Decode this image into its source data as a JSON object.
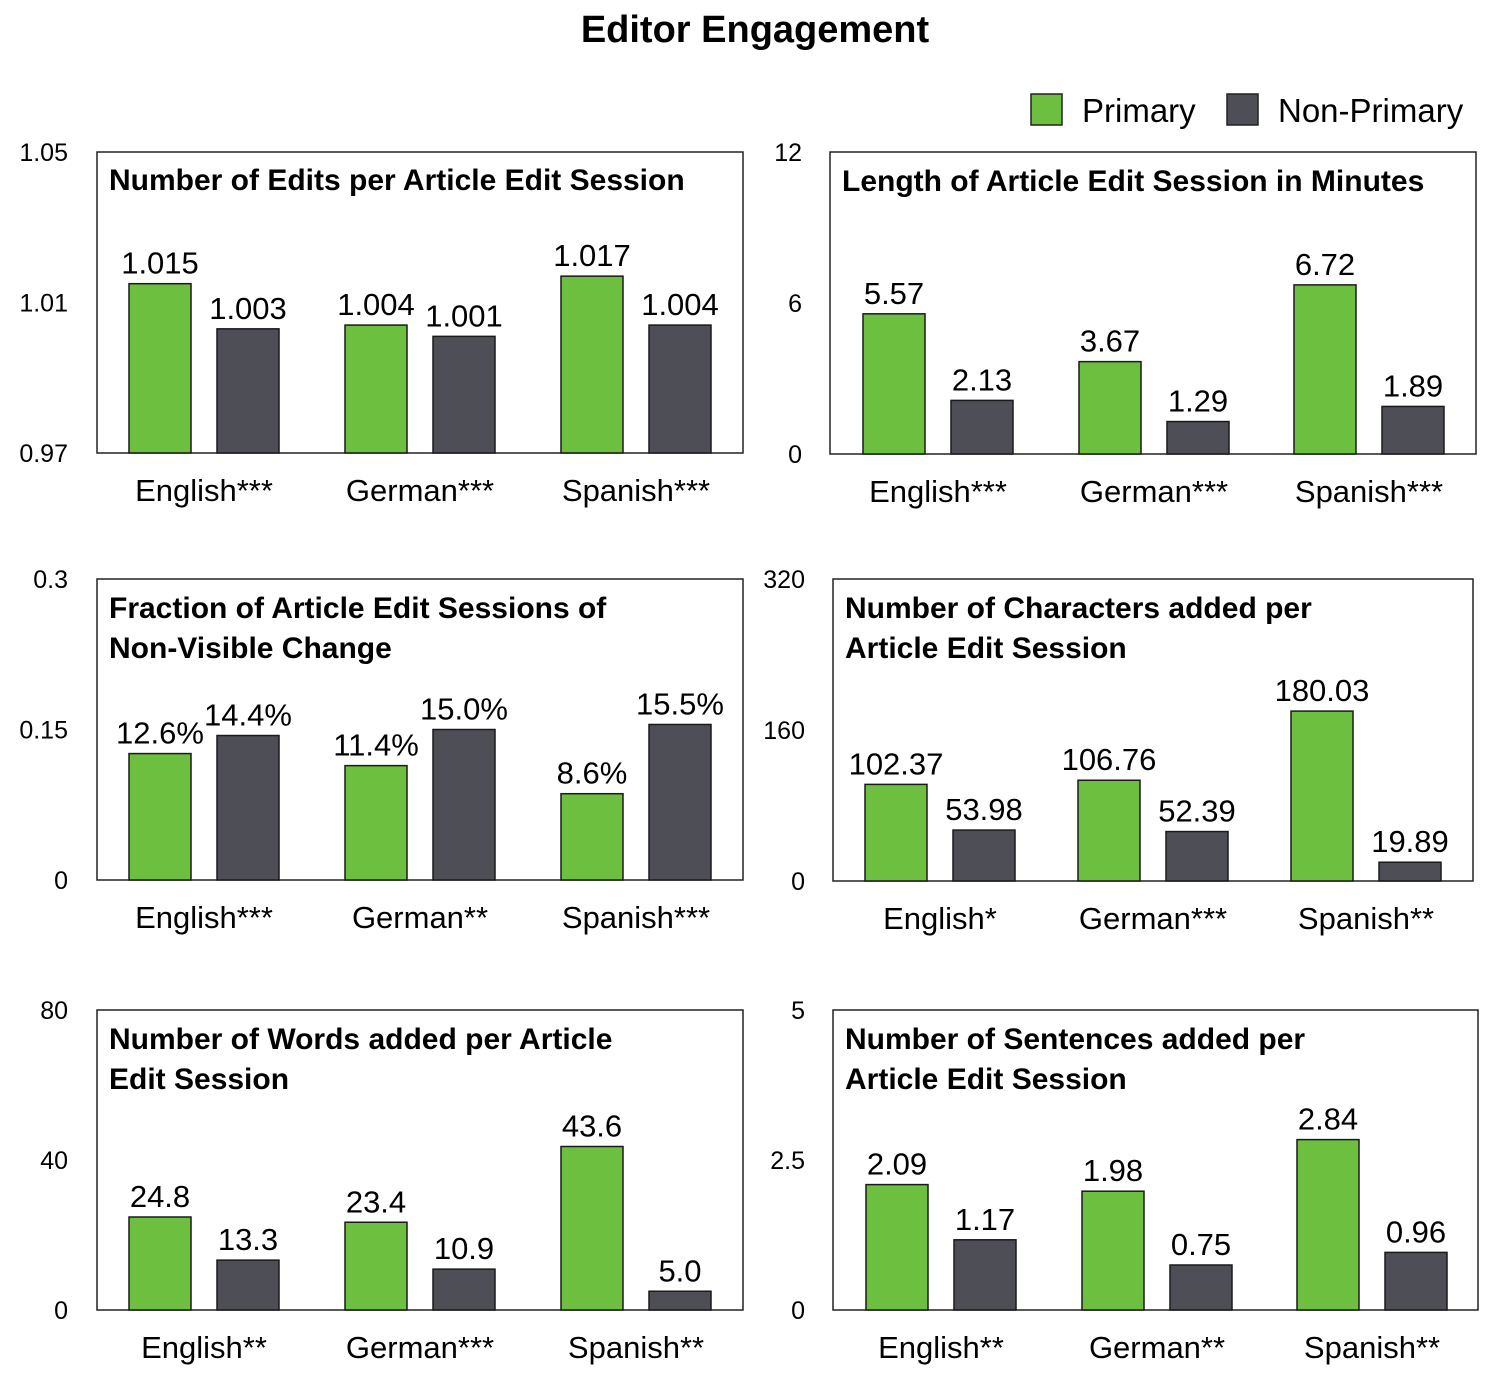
{
  "title": "Editor Engagement",
  "legend": [
    "Primary",
    "Non-Primary"
  ],
  "colors": {
    "Primary": "#6cbf3f",
    "Non-Primary": "#4e4e56"
  },
  "chart_data": [
    {
      "type": "bar",
      "title": "Number of Edits per Article Edit Session",
      "categories": [
        "English***",
        "German***",
        "Spanish***"
      ],
      "series": [
        {
          "name": "Primary",
          "values": [
            1.015,
            1.004,
            1.017
          ],
          "labels": [
            "1.015",
            "1.004",
            "1.017"
          ]
        },
        {
          "name": "Non-Primary",
          "values": [
            1.003,
            1.001,
            1.004
          ],
          "labels": [
            "1.003",
            "1.001",
            "1.004"
          ]
        }
      ],
      "ylim": [
        0.97,
        1.05
      ],
      "yticks": [
        "1.05",
        "1.01",
        "0.97"
      ],
      "ytick_values": [
        1.05,
        1.01,
        0.97
      ]
    },
    {
      "type": "bar",
      "title": "Length of Article Edit Session in Minutes",
      "categories": [
        "English***",
        "German***",
        "Spanish***"
      ],
      "series": [
        {
          "name": "Primary",
          "values": [
            5.57,
            3.67,
            6.72
          ],
          "labels": [
            "5.57",
            "3.67",
            "6.72"
          ]
        },
        {
          "name": "Non-Primary",
          "values": [
            2.13,
            1.29,
            1.89
          ],
          "labels": [
            "2.13",
            "1.29",
            "1.89"
          ]
        }
      ],
      "ylim": [
        0,
        12
      ],
      "yticks": [
        "12",
        "6",
        "0"
      ],
      "ytick_values": [
        12,
        6,
        0
      ]
    },
    {
      "type": "bar",
      "title": "Fraction of Article Edit Sessions of Non-Visible Change",
      "categories": [
        "English***",
        "German**",
        "Spanish***"
      ],
      "series": [
        {
          "name": "Primary",
          "values": [
            0.126,
            0.114,
            0.086
          ],
          "labels": [
            "12.6%",
            "11.4%",
            "8.6%"
          ]
        },
        {
          "name": "Non-Primary",
          "values": [
            0.144,
            0.15,
            0.155
          ],
          "labels": [
            "14.4%",
            "15.0%",
            "15.5%"
          ]
        }
      ],
      "ylim": [
        0,
        0.3
      ],
      "yticks": [
        "0.3",
        "0.15",
        "0"
      ],
      "ytick_values": [
        0.3,
        0.15,
        0
      ]
    },
    {
      "type": "bar",
      "title": "Number of Characters added per Article Edit Session",
      "categories": [
        "English*",
        "German***",
        "Spanish**"
      ],
      "series": [
        {
          "name": "Primary",
          "values": [
            102.37,
            106.76,
            180.03
          ],
          "labels": [
            "102.37",
            "106.76",
            "180.03"
          ]
        },
        {
          "name": "Non-Primary",
          "values": [
            53.98,
            52.39,
            19.89
          ],
          "labels": [
            "53.98",
            "52.39",
            "19.89"
          ]
        }
      ],
      "ylim": [
        0,
        320
      ],
      "yticks": [
        "320",
        "160",
        "0"
      ],
      "ytick_values": [
        320,
        160,
        0
      ]
    },
    {
      "type": "bar",
      "title": "Number of Words added per Article Edit Session",
      "categories": [
        "English**",
        "German***",
        "Spanish**"
      ],
      "series": [
        {
          "name": "Primary",
          "values": [
            24.8,
            23.4,
            43.6
          ],
          "labels": [
            "24.8",
            "23.4",
            "43.6"
          ]
        },
        {
          "name": "Non-Primary",
          "values": [
            13.3,
            10.9,
            5.0
          ],
          "labels": [
            "13.3",
            "10.9",
            "5.0"
          ]
        }
      ],
      "ylim": [
        0,
        80
      ],
      "yticks": [
        "80",
        "40",
        "0"
      ],
      "ytick_values": [
        80,
        40,
        0
      ]
    },
    {
      "type": "bar",
      "title": "Number of Sentences added per Article Edit Session",
      "categories": [
        "English**",
        "German**",
        "Spanish**"
      ],
      "series": [
        {
          "name": "Primary",
          "values": [
            2.09,
            1.98,
            2.84
          ],
          "labels": [
            "2.09",
            "1.98",
            "2.84"
          ]
        },
        {
          "name": "Non-Primary",
          "values": [
            1.17,
            0.75,
            0.96
          ],
          "labels": [
            "1.17",
            "0.75",
            "0.96"
          ]
        }
      ],
      "ylim": [
        0,
        5
      ],
      "yticks": [
        "5",
        "2.5",
        "0"
      ],
      "ytick_values": [
        5,
        2.5,
        0
      ]
    }
  ]
}
